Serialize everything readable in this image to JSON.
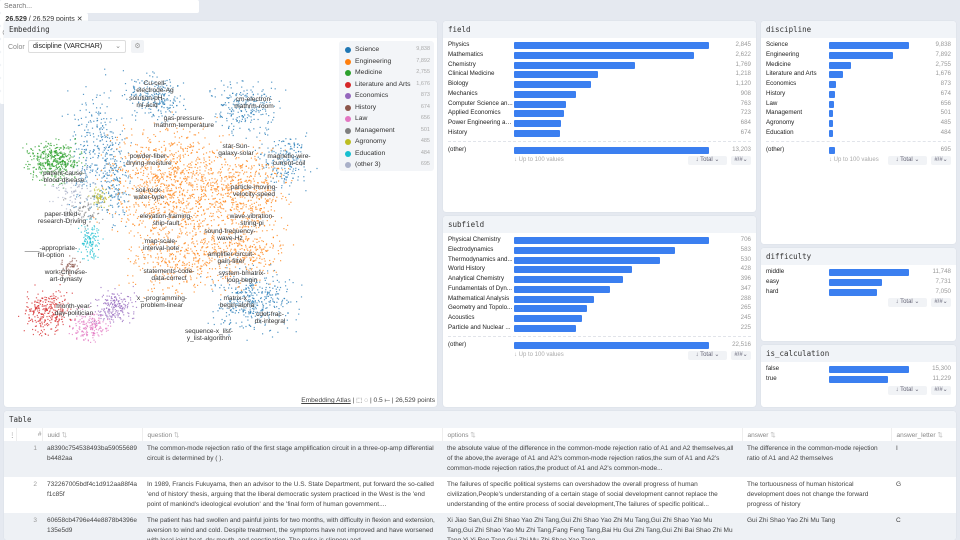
{
  "topbar": {
    "search_placeholder": "Search...",
    "points": "26,529",
    "points_total": "26,529 points"
  },
  "embedding": {
    "title": "Embedding",
    "color_label": "Color",
    "color_value": "discipline (VARCHAR)",
    "legend": [
      {
        "label": "Science",
        "count": "9,838",
        "color": "#1f77b4"
      },
      {
        "label": "Engineering",
        "count": "7,892",
        "color": "#ff7f0e"
      },
      {
        "label": "Medicine",
        "count": "2,755",
        "color": "#2ca02c"
      },
      {
        "label": "Literature and Arts",
        "count": "1,676",
        "color": "#d62728"
      },
      {
        "label": "Economics",
        "count": "873",
        "color": "#9467bd"
      },
      {
        "label": "History",
        "count": "674",
        "color": "#8c564b"
      },
      {
        "label": "Law",
        "count": "656",
        "color": "#e377c2"
      },
      {
        "label": "Management",
        "count": "501",
        "color": "#7f7f7f"
      },
      {
        "label": "Agronomy",
        "count": "485",
        "color": "#bcbd22"
      },
      {
        "label": "Education",
        "count": "484",
        "color": "#17becf"
      },
      {
        "label": "(other 3)",
        "count": "695",
        "color": "#a9b0c8"
      }
    ],
    "labels": [
      "Cu-cell-\nelectrode-Ag",
      "solution-pH-\nmi-acid",
      "cm-electron-\nmathrm-room",
      "gas-pressure-\nmathrm-temperature",
      "star-Sun-\ngalaxy-solar",
      "magnetic-wire-\ncurrent-coil",
      "powder-fiber-\ndrying-moisture",
      "patient-cause-\nblood-disease",
      "soil-rock-\nwater-type",
      "particle-moving-\nvelocity-speed",
      "paper-titled-\nresearch-Driving",
      "elevation-framing-\nship-fault",
      "wave-vibration-\nstring-pi",
      "sound-frequency-\nwave-Hz",
      "map-scale-\ninterval-note",
      "____-appropriate-\nfill-option",
      "amplifier-circuit-\ngain-filter",
      "statements-code-\ndata-correct",
      "system-bmatrix-\nloop-begin",
      "work-Chinese-\nart-dynasty",
      "matrix-x_\nbegin-alpha",
      "x_-programming-\nproblem-linear",
      "month-year-\nday-politician",
      "cdot-frac-\ndx-integral",
      "sequence-x_list-\ny_list-algorithm"
    ],
    "footer": {
      "link": "Embedding Atlas",
      "scale": "0.5",
      "points": "26,529 points"
    }
  },
  "field": {
    "title": "field",
    "rows": [
      [
        "Physics",
        2845,
        "2,845"
      ],
      [
        "Mathematics",
        2622,
        "2,622"
      ],
      [
        "Chemistry",
        1769,
        "1,769"
      ],
      [
        "Clinical Medicine",
        1218,
        "1,218"
      ],
      [
        "Biology",
        1120,
        "1,120"
      ],
      [
        "Mechanics",
        908,
        "908"
      ],
      [
        "Computer Science an...",
        763,
        "763"
      ],
      [
        "Applied Economics",
        723,
        "723"
      ],
      [
        "Power Engineering an...",
        684,
        "684"
      ],
      [
        "History",
        674,
        "674"
      ]
    ],
    "other": [
      "(other)",
      13203,
      "13,203"
    ],
    "foot": "↓ Up to 100 values",
    "sort": "↓ Total",
    "fmt": "#/#"
  },
  "subfield": {
    "title": "subfield",
    "rows": [
      [
        "Physical Chemistry",
        706,
        "706"
      ],
      [
        "Electrodynamics",
        583,
        "583"
      ],
      [
        "Thermodynamics and...",
        530,
        "530"
      ],
      [
        "World History",
        428,
        "428"
      ],
      [
        "Analytical Chemistry",
        396,
        "396"
      ],
      [
        "Fundamentals of Dyn...",
        347,
        "347"
      ],
      [
        "Mathematical Analysis",
        288,
        "288"
      ],
      [
        "Geometry and Topolo...",
        265,
        "265"
      ],
      [
        "Acoustics",
        245,
        "245"
      ],
      [
        "Particle and Nuclear ...",
        225,
        "225"
      ]
    ],
    "other": [
      "(other)",
      22516,
      "22,516"
    ],
    "foot": "↓ Up to 100 values",
    "sort": "↓ Total",
    "fmt": "#/#"
  },
  "discipline": {
    "title": "discipline",
    "rows": [
      [
        "Science",
        9838,
        "9,838"
      ],
      [
        "Engineering",
        7892,
        "7,892"
      ],
      [
        "Medicine",
        2755,
        "2,755"
      ],
      [
        "Literature and Arts",
        1676,
        "1,676"
      ],
      [
        "Economics",
        873,
        "873"
      ],
      [
        "History",
        674,
        "674"
      ],
      [
        "Law",
        656,
        "656"
      ],
      [
        "Management",
        501,
        "501"
      ],
      [
        "Agronomy",
        485,
        "485"
      ],
      [
        "Education",
        484,
        "484"
      ]
    ],
    "other": [
      "(other)",
      695,
      "695"
    ],
    "foot": "↓ Up to 100 values",
    "sort": "↓ Total",
    "fmt": "#/#"
  },
  "difficulty": {
    "title": "difficulty",
    "rows": [
      [
        "middle",
        11748,
        "11,748"
      ],
      [
        "easy",
        7731,
        "7,731"
      ],
      [
        "hard",
        7050,
        "7,050"
      ]
    ],
    "sort": "↓ Total",
    "fmt": "#/#"
  },
  "is_calculation": {
    "title": "is_calculation",
    "rows": [
      [
        "false",
        15300,
        "15,300"
      ],
      [
        "true",
        11229,
        "11,229"
      ]
    ],
    "sort": "↓ Total",
    "fmt": "#/#"
  },
  "table": {
    "title": "Table",
    "columns": [
      "#",
      "uuid",
      "question",
      "options",
      "answer",
      "answer_letter"
    ],
    "rows": [
      [
        "1",
        "a8390c754538493ba59055689b4482aa",
        "The common-mode rejection ratio of the first stage amplification circuit in a three-op-amp differential circuit is determined by ( ).",
        "the absolute value of the difference in the common-mode rejection ratio of A1 and A2 themselves,all of the above,the average of A1 and A2's common-mode rejection ratios,the sum of A1 and A2's common-mode rejection ratios,the product of A1 and A2's common-mode...",
        "The difference in the common-mode rejection ratio of A1 and A2 themselves",
        "I"
      ],
      [
        "2",
        "732267005bdf4c1d912aa88f4af1c85f",
        "In 1989, Francis Fukuyama, then an advisor to the U.S. State Department, put forward the so-called 'end of history' thesis, arguing that the liberal democratic system practiced in the West is the 'end point of mankind's ideological evolution' and the 'final form of human government....",
        "The failures of specific political systems can overshadow the overall progress of human civilization,People's understanding of a certain stage of social development cannot replace the understanding of the entire process of social development,The failures of specific political...",
        "The tortuousness of human historical development does not change the forward progress of history",
        "G"
      ],
      [
        "3",
        "60658cb4796e44e8878b4396e135e5d9",
        "The patient has had swollen and painful joints for two months, with difficulty in flexion and extension, aversion to wind and cold. Despite treatment, the symptoms have not improved and have worsened with local joint heat, dry mouth, and constipation. The pulse is slippery and...",
        "Xi Jiao San,Gui Zhi Shao Yao Zhi Tang,Gui Zhi Shao Yao Zhi Mu Tang,Gui Zhi Shao Yao Mu Tang,Gui Zhi Shao Yao Mu Zhi Tang,Fang Feng Tang,Bai Hu Gui Zhi Tang,Gui Zhi Bai Shao Zhi Mu Tang,Yi Yi Ren Tang,Gui Zhi Mu Zhi Shao Yao Tang",
        "Gui Zhi Shao Yao Zhi Mu Tang",
        "C"
      ]
    ]
  },
  "accent": "#3b7ff0"
}
